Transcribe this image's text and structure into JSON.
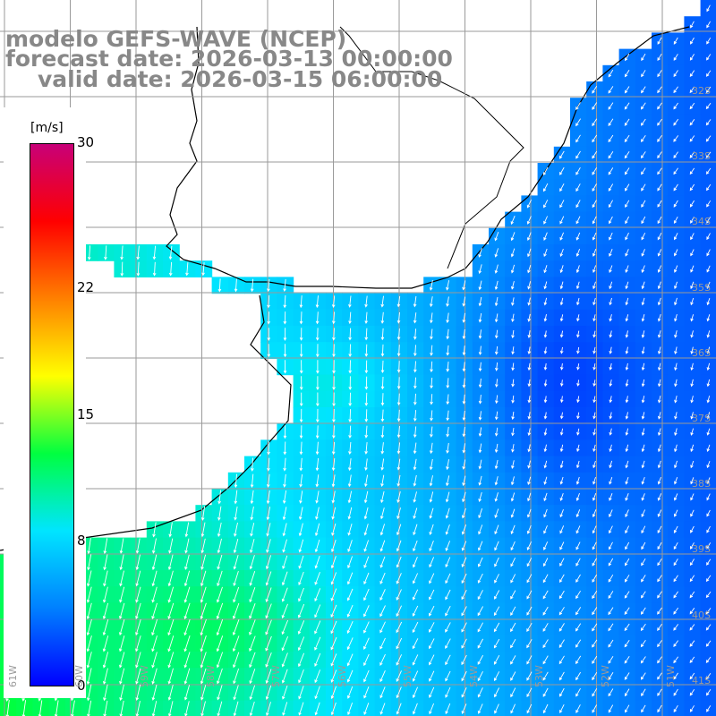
{
  "title": {
    "line1": "modelo GEFS-WAVE (NCEP)",
    "line2": "forecast date: 2026-03-13 00:00:00",
    "line3": "valid date: 2026-03-15 06:00:00"
  },
  "colorbar": {
    "units": "[m/s]",
    "min": 0,
    "max": 30,
    "ticks": [
      {
        "value": 30,
        "label": "30"
      },
      {
        "value": 22,
        "label": "22"
      },
      {
        "value": 15,
        "label": "15"
      },
      {
        "value": 8,
        "label": "8"
      },
      {
        "value": 0,
        "label": "0"
      }
    ],
    "stops": [
      "#0000ff",
      "#0080ff",
      "#00e5ff",
      "#00ff40",
      "#ffff00",
      "#ff8000",
      "#ff0000",
      "#c80078"
    ]
  },
  "map": {
    "lat_range": [
      -41.5,
      -31
    ],
    "lon_range": [
      -60.5,
      -50.5
    ],
    "lat_labels": [
      "32S",
      "33S",
      "34S",
      "35S",
      "36S",
      "37S",
      "38S",
      "39S",
      "40S",
      "41S"
    ],
    "lon_labels": [
      "61W",
      "60W",
      "59W",
      "58W",
      "57W",
      "56W",
      "55W",
      "54W",
      "53W",
      "52W",
      "51W"
    ],
    "colors": {
      "land": "#ffffff",
      "coast": "#000000",
      "grid": "#9a9a9a",
      "arrow": "#ffffff"
    }
  }
}
